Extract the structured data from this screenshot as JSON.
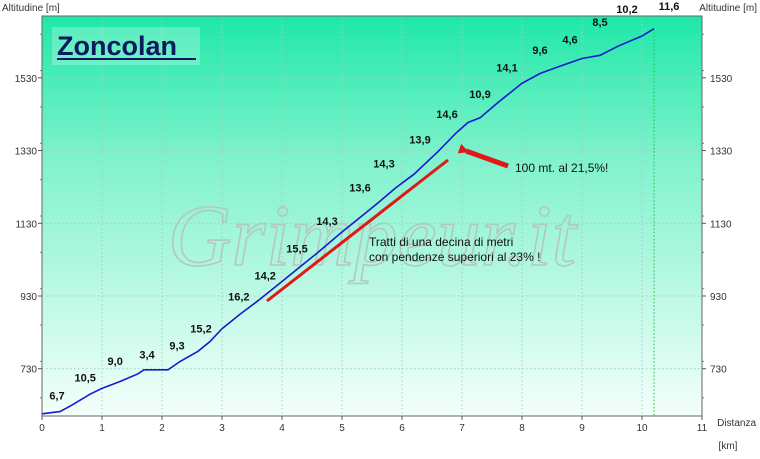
{
  "chart_data": {
    "type": "line",
    "title": "Zoncolan",
    "watermark": "Grimpeur.it",
    "xlabel": "Distanza",
    "xunit": "[km]",
    "ylabel_left": "Altitudine [m]",
    "ylabel_right": "Altitudine [m]",
    "xlim": [
      0,
      11
    ],
    "ylim": [
      600,
      1700
    ],
    "x_ticks": [
      0,
      1,
      2,
      3,
      4,
      5,
      6,
      7,
      8,
      9,
      10,
      11
    ],
    "y_ticks": [
      730,
      930,
      1130,
      1330,
      1530
    ],
    "grid": true,
    "colors": {
      "line": "#1a1acc",
      "marker": "#e01818",
      "background_top": "#1ee8a8",
      "background_bottom": "#f4fffb"
    },
    "profile": {
      "x": [
        0,
        0.3,
        0.5,
        0.8,
        1.0,
        1.3,
        1.6,
        1.7,
        2.1,
        2.3,
        2.6,
        2.8,
        3.0,
        3.3,
        3.6,
        4.0,
        4.3,
        4.6,
        5.0,
        5.3,
        5.6,
        5.9,
        6.2,
        6.6,
        6.9,
        7.1,
        7.3,
        7.6,
        8.0,
        8.3,
        8.6,
        9.0,
        9.3,
        9.6,
        10.0,
        10.2
      ],
      "y": [
        606,
        612,
        630,
        660,
        676,
        695,
        716,
        727,
        727,
        750,
        778,
        805,
        840,
        880,
        917,
        970,
        1010,
        1050,
        1106,
        1146,
        1186,
        1228,
        1265,
        1327,
        1378,
        1407,
        1420,
        1462,
        1515,
        1542,
        1560,
        1583,
        1592,
        1617,
        1645,
        1665
      ]
    },
    "gradients": [
      {
        "x": 0.25,
        "y": 645,
        "label": "6,7"
      },
      {
        "x": 0.72,
        "y": 695,
        "label": "10,5"
      },
      {
        "x": 1.22,
        "y": 740,
        "label": "9,0"
      },
      {
        "x": 1.75,
        "y": 758,
        "label": "3,4"
      },
      {
        "x": 2.25,
        "y": 783,
        "label": "9,3"
      },
      {
        "x": 2.65,
        "y": 830,
        "label": "15,2"
      },
      {
        "x": 3.28,
        "y": 917,
        "label": "16,2"
      },
      {
        "x": 3.72,
        "y": 975,
        "label": "14,2"
      },
      {
        "x": 4.25,
        "y": 1050,
        "label": "15,5"
      },
      {
        "x": 4.75,
        "y": 1125,
        "label": "14,3"
      },
      {
        "x": 5.3,
        "y": 1218,
        "label": "13,6"
      },
      {
        "x": 5.7,
        "y": 1283,
        "label": "14,3"
      },
      {
        "x": 6.3,
        "y": 1350,
        "label": "13,9"
      },
      {
        "x": 6.75,
        "y": 1420,
        "label": "14,6"
      },
      {
        "x": 7.3,
        "y": 1475,
        "label": "10,9"
      },
      {
        "x": 7.75,
        "y": 1548,
        "label": "14,1"
      },
      {
        "x": 8.3,
        "y": 1595,
        "label": "9,6"
      },
      {
        "x": 8.8,
        "y": 1625,
        "label": "4,6"
      },
      {
        "x": 9.3,
        "y": 1672,
        "label": "8,5"
      },
      {
        "x": 9.75,
        "y": 1708,
        "label": "10,2"
      },
      {
        "x": 10.45,
        "y": 1717,
        "label": "11,6"
      }
    ],
    "annotations": [
      {
        "text": "100 mt. al 21,5%!"
      },
      {
        "line1": "Tratti di una decina di metri",
        "line2": "con pendenze superiori al 23% !"
      }
    ]
  }
}
